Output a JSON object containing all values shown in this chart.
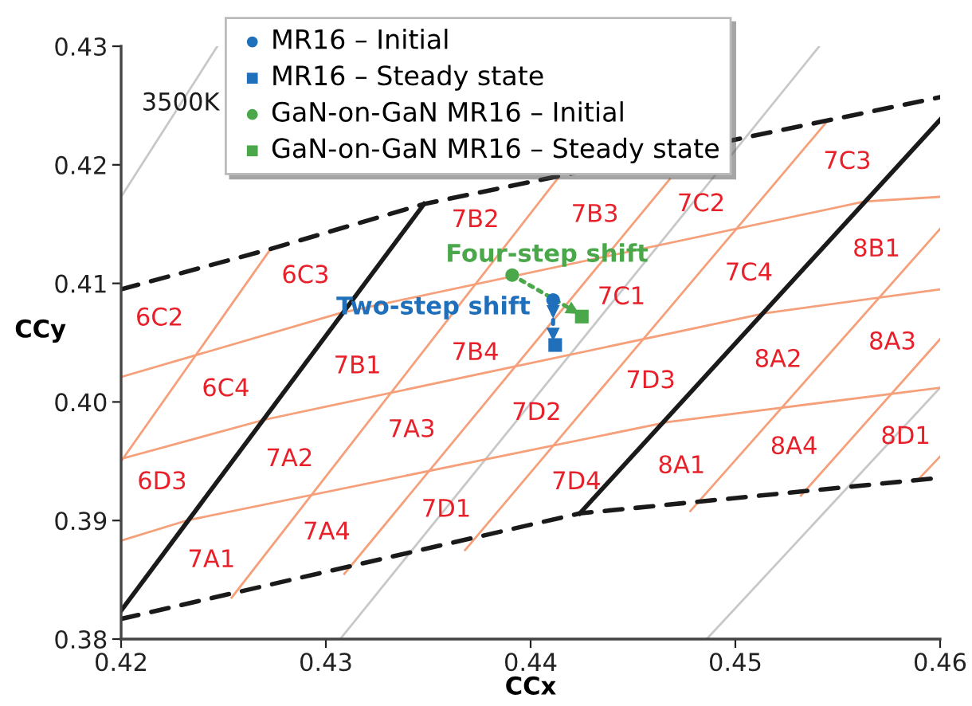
{
  "chart_data": {
    "type": "scatter",
    "xlabel": "CCx",
    "ylabel": "CCy",
    "xlim": [
      0.42,
      0.46
    ],
    "ylim": [
      0.38,
      0.43
    ],
    "xticks": [
      0.42,
      0.43,
      0.44,
      0.45,
      0.46
    ],
    "yticks": [
      0.38,
      0.39,
      {
        "value": 0.4,
        "label": "0.40"
      },
      0.41,
      0.42,
      0.43
    ],
    "grid": false,
    "legend": "top",
    "series": [
      {
        "type": "line",
        "color": "#c8c8c8",
        "line_style": "solid",
        "x": [
          0.42,
          0.4247
        ],
        "values": [
          0.4173,
          0.43
        ]
      },
      {
        "type": "line",
        "color": "#c8c8c8",
        "line_style": "solid",
        "x": [
          0.4307,
          0.4541
        ],
        "values": [
          0.38,
          0.43
        ]
      },
      {
        "type": "line",
        "color": "#c8c8c8",
        "line_style": "solid",
        "x": [
          0.4486,
          0.46
        ],
        "values": [
          0.38,
          0.4012
        ]
      },
      {
        "type": "line",
        "color": "#f5a07a",
        "line_style": "solid",
        "x": [
          0.42,
          0.4232,
          0.4467,
          0.46
        ],
        "values": [
          0.3883,
          0.39,
          0.3983,
          0.4012
        ]
      },
      {
        "type": "line",
        "color": "#f5a07a",
        "line_style": "solid",
        "x": [
          0.42,
          0.427,
          0.4515,
          0.46
        ],
        "values": [
          0.3952,
          0.3985,
          0.4075,
          0.4095
        ]
      },
      {
        "type": "line",
        "color": "#f5a07a",
        "line_style": "solid",
        "x": [
          0.42,
          0.4307,
          0.4563,
          0.46
        ],
        "values": [
          0.4021,
          0.4075,
          0.4169,
          0.4173
        ]
      },
      {
        "type": "line",
        "color": "#f5a07a",
        "line_style": "solid",
        "x": [
          0.42,
          0.4273
        ],
        "values": [
          0.395,
          0.4129
        ]
      },
      {
        "type": "line",
        "color": "#f5a07a",
        "line_style": "solid",
        "x": [
          0.4254,
          0.4413
        ],
        "values": [
          0.3835,
          0.4188
        ]
      },
      {
        "type": "line",
        "color": "#f5a07a",
        "line_style": "solid",
        "x": [
          0.4309,
          0.4468
        ],
        "values": [
          0.3855,
          0.4188
        ]
      },
      {
        "type": "line",
        "color": "#f5a07a",
        "line_style": "solid",
        "x": [
          0.4368,
          0.4545
        ],
        "values": [
          0.3875,
          0.4237
        ]
      },
      {
        "type": "line",
        "color": "#f5a07a",
        "line_style": "solid",
        "x": [
          0.4478,
          0.46
        ],
        "values": [
          0.3908,
          0.4146
        ]
      },
      {
        "type": "line",
        "color": "#f5a07a",
        "line_style": "solid",
        "x": [
          0.4532,
          0.46
        ],
        "values": [
          0.3921,
          0.4053
        ]
      },
      {
        "type": "line",
        "color": "#f5a07a",
        "line_style": "solid",
        "x": [
          0.4589,
          0.46
        ],
        "values": [
          0.3934,
          0.3954
        ]
      },
      {
        "type": "line",
        "color": "#1a1a1a",
        "line_style": "solid",
        "x": [
          0.42,
          0.4348
        ],
        "values": [
          0.3824,
          0.4167
        ]
      },
      {
        "type": "line",
        "color": "#1a1a1a",
        "line_style": "solid",
        "x": [
          0.4424,
          0.46
        ],
        "values": [
          0.3906,
          0.4238
        ]
      },
      {
        "type": "line",
        "color": "#1a1a1a",
        "line_style": "dashed",
        "x": [
          0.42,
          0.4273,
          0.4348,
          0.46
        ],
        "values": [
          0.4095,
          0.4129,
          0.4167,
          0.4257
        ]
      },
      {
        "type": "line",
        "color": "#1a1a1a",
        "line_style": "dashed",
        "x": [
          0.42,
          0.4424,
          0.46
        ],
        "values": [
          0.3817,
          0.3906,
          0.3936
        ]
      },
      {
        "type": "line",
        "color": "#1f6fba",
        "line_style": "dotted",
        "x": [
          0.4411,
          0.4411,
          0.4411
        ],
        "values": [
          0.4086,
          0.4076,
          0.4057
        ]
      },
      {
        "type": "line",
        "color": "#4aa84a",
        "line_style": "dotted",
        "x": [
          0.4391,
          0.4421
        ],
        "values": [
          0.4107,
          0.4077
        ]
      },
      {
        "name": "MR16 – Initial",
        "color": "#1f6fba",
        "marker": "circle",
        "x": [
          0.4411
        ],
        "values": [
          0.4086
        ]
      },
      {
        "name": "MR16 – Steady state",
        "color": "#1f6fba",
        "marker": "square",
        "x": [
          0.4412
        ],
        "values": [
          0.4048
        ]
      },
      {
        "name": "GaN-on-GaN MR16 – Initial",
        "color": "#4aa84a",
        "marker": "circle",
        "x": [
          0.4391
        ],
        "values": [
          0.4107
        ]
      },
      {
        "name": "GaN-on-GaN MR16 – Steady state",
        "color": "#4aa84a",
        "marker": "square",
        "x": [
          0.4425
        ],
        "values": [
          0.4072
        ]
      }
    ],
    "annotations": [
      "3500K",
      "Four-step shift",
      "Two-step shift",
      "6C3",
      "6C2",
      "6C4",
      "6D3",
      "7A1",
      "7A2",
      "7A3",
      "7A4",
      "7B1",
      "7B4",
      "7B2",
      "7B3",
      "7C2",
      "7C3",
      "7C1",
      "7C4",
      "8B1",
      "8A3",
      "7D1",
      "7D2",
      "7D3",
      "7D4",
      "8A1",
      "8A2",
      "8A4",
      "8D1"
    ]
  }
}
